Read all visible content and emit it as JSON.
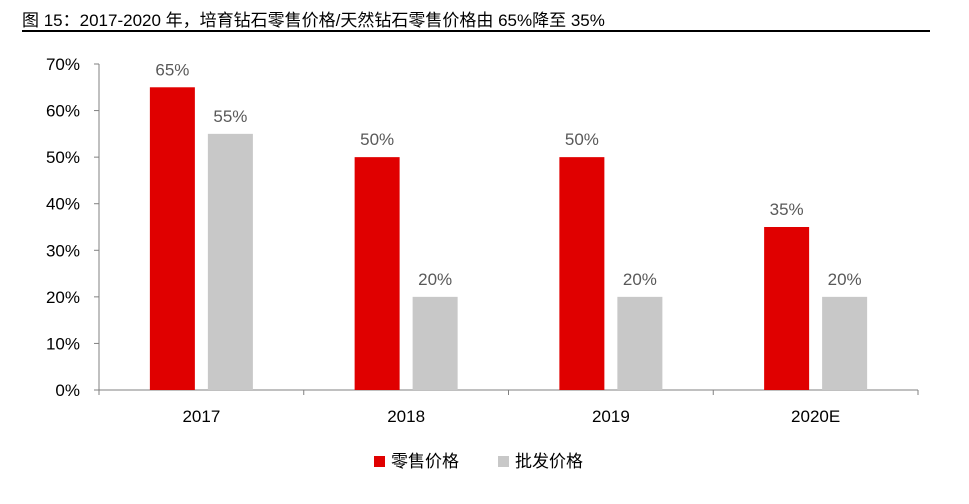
{
  "figure": {
    "title": "图 15：2017-2020 年，培育钻石零售价格/天然钻石零售价格由 65%降至 35%"
  },
  "chart_data": {
    "type": "bar",
    "categories": [
      "2017",
      "2018",
      "2019",
      "2020E"
    ],
    "series": [
      {
        "name": "零售价格",
        "values": [
          65,
          50,
          50,
          35
        ],
        "color": "#e00000"
      },
      {
        "name": "批发价格",
        "values": [
          55,
          20,
          20,
          20
        ],
        "color": "#c8c8c8"
      }
    ],
    "data_labels": [
      [
        "65%",
        "50%",
        "50%",
        "35%"
      ],
      [
        "55%",
        "20%",
        "20%",
        "20%"
      ]
    ],
    "yticks": [
      0,
      10,
      20,
      30,
      40,
      50,
      60,
      70
    ],
    "ytick_labels": [
      "0%",
      "10%",
      "20%",
      "30%",
      "40%",
      "50%",
      "60%",
      "70%"
    ],
    "ylim": [
      0,
      70
    ],
    "grid": false,
    "legend_position": "bottom-center"
  }
}
